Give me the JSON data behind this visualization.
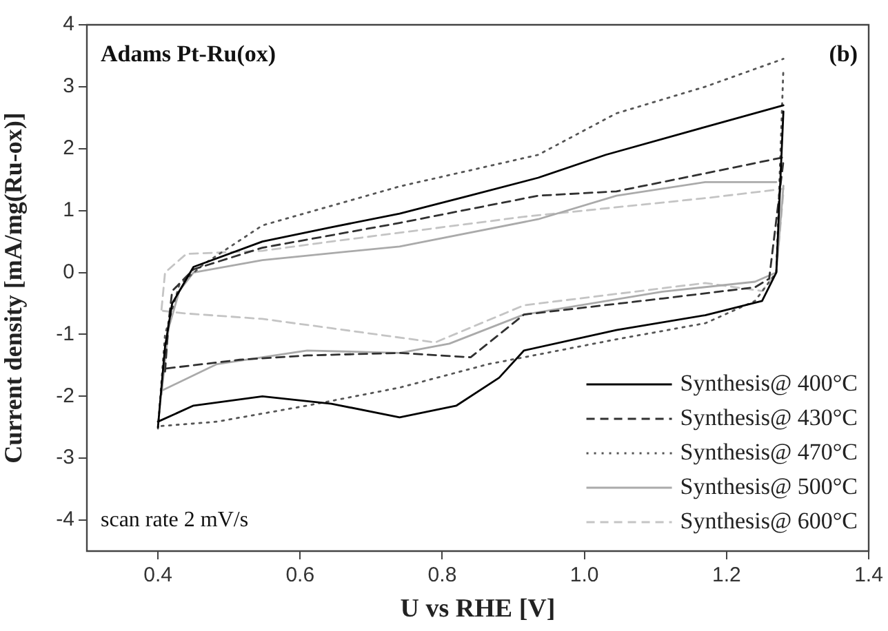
{
  "chart_data": {
    "type": "line",
    "xlabel": "U vs RHE [V]",
    "ylabel": "Current density [mA/mg(Ru-ox)]",
    "annotations": [
      "Adams Pt-Ru(ox)",
      "(b)",
      "scan rate 2 mV/s"
    ],
    "xlim": [
      0.3,
      1.4
    ],
    "xticks": [
      {
        "value": 0.4,
        "label": "0.4"
      },
      {
        "value": 0.6,
        "label": "0.6"
      },
      {
        "value": 0.8,
        "label": "0.8"
      },
      {
        "value": 1.0,
        "label": "1.0"
      },
      {
        "value": 1.2,
        "label": "1.2"
      },
      {
        "value": 1.4,
        "label": "1.4"
      }
    ],
    "ylim": [
      -4.5,
      4
    ],
    "yticks": [
      -4,
      -3,
      -2,
      -1,
      0,
      1,
      2,
      3,
      4
    ],
    "grid": false,
    "legend": "bottom right",
    "marker": "none",
    "series": [
      {
        "name": "Synthesis@ 400°C",
        "color": "#000000",
        "line_style": "solid",
        "x": [
          0.4,
          0.41,
          0.42,
          0.45,
          0.547,
          0.644,
          0.74,
          0.838,
          0.935,
          1.03,
          1.17,
          1.28
        ],
        "values": [
          -2.5,
          -1.2,
          -0.5,
          0.09,
          0.5,
          0.73,
          0.95,
          1.24,
          1.53,
          1.9,
          2.35,
          2.7
        ]
      },
      {
        "color": "#000000",
        "line_style": "solid",
        "x": [
          0.4,
          0.45,
          0.547,
          0.644,
          0.74,
          0.82,
          0.88,
          0.915,
          1.045,
          1.17,
          1.25,
          1.27,
          1.28
        ],
        "values": [
          -2.41,
          -2.15,
          -2.0,
          -2.12,
          -2.34,
          -2.15,
          -1.7,
          -1.26,
          -0.93,
          -0.69,
          -0.46,
          0.0,
          2.6
        ]
      },
      {
        "name": "Synthesis@ 430°C",
        "color": "#303030",
        "line_style": "dashed",
        "x": [
          0.41,
          0.415,
          0.42,
          0.45,
          0.547,
          0.74,
          0.935,
          1.045,
          1.17,
          1.28
        ],
        "values": [
          -1.6,
          -0.8,
          -0.3,
          0.05,
          0.4,
          0.8,
          1.24,
          1.31,
          1.6,
          1.86
        ]
      },
      {
        "color": "#303030",
        "line_style": "dashed",
        "x": [
          0.412,
          0.515,
          0.61,
          0.74,
          0.84,
          0.915,
          1.11,
          1.24,
          1.26,
          1.28
        ],
        "values": [
          -1.55,
          -1.41,
          -1.34,
          -1.3,
          -1.37,
          -0.68,
          -0.42,
          -0.24,
          -0.1,
          1.8
        ]
      },
      {
        "name": "Synthesis@ 470°C",
        "color": "#555555",
        "line_style": "dotted",
        "x": [
          0.4,
          0.41,
          0.43,
          0.464,
          0.547,
          0.74,
          0.935,
          1.045,
          1.17,
          1.28
        ],
        "values": [
          -2.52,
          -1.0,
          -0.2,
          0.13,
          0.76,
          1.39,
          1.9,
          2.57,
          3.0,
          3.45
        ]
      },
      {
        "color": "#555555",
        "line_style": "dotted",
        "x": [
          0.405,
          0.483,
          0.61,
          0.74,
          0.865,
          0.915,
          1.045,
          1.17,
          1.24,
          1.27,
          1.28
        ],
        "values": [
          -2.48,
          -2.41,
          -2.15,
          -1.86,
          -1.48,
          -1.37,
          -1.08,
          -0.82,
          -0.46,
          0.0,
          3.3
        ]
      },
      {
        "name": "Synthesis@ 500°C",
        "color": "#aaaaaa",
        "line_style": "solid",
        "x": [
          0.405,
          0.415,
          0.43,
          0.45,
          0.547,
          0.74,
          0.935,
          1.045,
          1.17,
          1.27
        ],
        "values": [
          -1.97,
          -0.9,
          -0.3,
          0.0,
          0.2,
          0.42,
          0.86,
          1.24,
          1.46,
          1.46
        ]
      },
      {
        "color": "#aaaaaa",
        "line_style": "solid",
        "x": [
          0.407,
          0.483,
          0.61,
          0.74,
          0.81,
          0.915,
          1.11,
          1.24,
          1.27,
          1.28
        ],
        "values": [
          -1.9,
          -1.48,
          -1.26,
          -1.3,
          -1.15,
          -0.68,
          -0.31,
          -0.15,
          0.0,
          1.4
        ]
      },
      {
        "name": "Synthesis@ 600°C",
        "color": "#c4c4c4",
        "line_style": "dashed",
        "x": [
          0.405,
          0.41,
          0.44,
          0.547,
          0.644,
          0.915,
          1.17,
          1.28
        ],
        "values": [
          -0.6,
          0.0,
          0.3,
          0.35,
          0.5,
          0.9,
          1.2,
          1.35
        ]
      },
      {
        "color": "#c4c4c4",
        "line_style": "dashed",
        "x": [
          0.407,
          0.437,
          0.547,
          0.644,
          0.79,
          0.915,
          1.17,
          1.25,
          1.27,
          1.28
        ],
        "values": [
          -0.62,
          -0.66,
          -0.75,
          -0.9,
          -1.13,
          -0.53,
          -0.17,
          -0.3,
          0.0,
          1.3
        ]
      }
    ]
  }
}
